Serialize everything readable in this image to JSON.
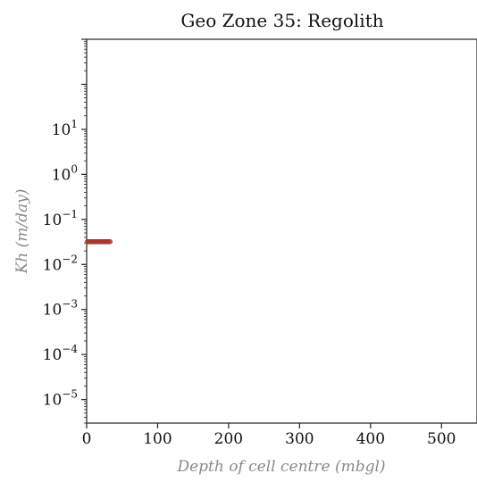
{
  "chart_data": {
    "type": "scatter",
    "title": "Geo Zone 35: Regolith",
    "xlabel": "Depth of cell centre (mbgl)",
    "ylabel": "Kh (m/day)",
    "xlim": [
      0,
      550
    ],
    "ylim": [
      3e-06,
      1000
    ],
    "yscale": "log",
    "grid": false,
    "xticks": [
      0,
      100,
      200,
      300,
      400,
      500
    ],
    "yticks": [
      {
        "value": 1e-05,
        "base": "10",
        "exp": "−5"
      },
      {
        "value": 0.0001,
        "base": "10",
        "exp": "−4"
      },
      {
        "value": 0.001,
        "base": "10",
        "exp": "−3"
      },
      {
        "value": 0.01,
        "base": "10",
        "exp": "−2"
      },
      {
        "value": 0.1,
        "base": "10",
        "exp": "−1"
      },
      {
        "value": 1,
        "base": "10",
        "exp": "0"
      },
      {
        "value": 10,
        "base": "10",
        "exp": "1"
      }
    ],
    "series": [
      {
        "color": "#c0392b",
        "x": [
          1,
          3,
          5,
          7,
          9,
          11,
          13,
          15,
          17,
          19,
          21,
          23,
          25,
          27,
          29,
          31,
          33
        ],
        "y": [
          0.032,
          0.032,
          0.032,
          0.032,
          0.032,
          0.032,
          0.032,
          0.032,
          0.032,
          0.032,
          0.032,
          0.032,
          0.032,
          0.032,
          0.032,
          0.032,
          0.032
        ]
      }
    ]
  }
}
